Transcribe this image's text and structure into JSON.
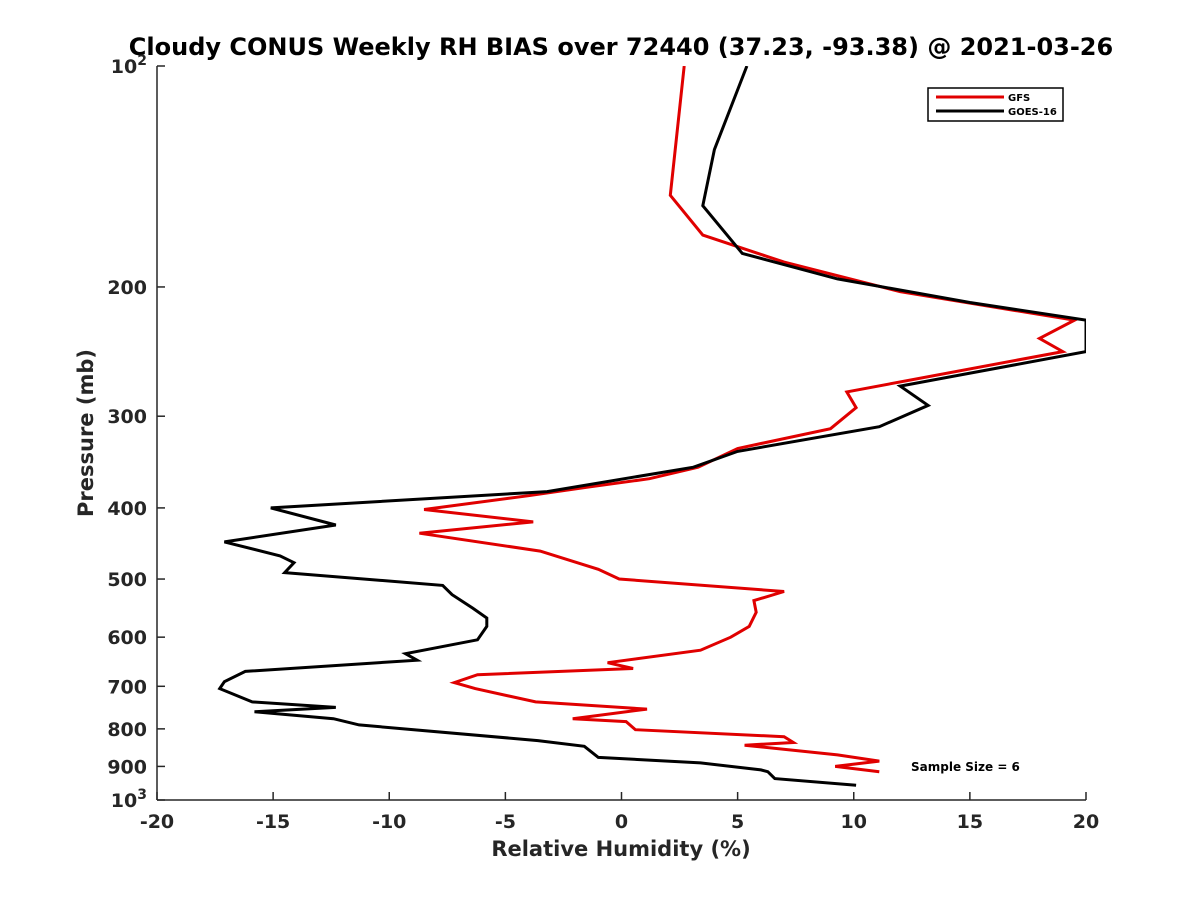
{
  "chart_data": {
    "type": "line",
    "title": "Cloudy CONUS Weekly RH BIAS over 72440 (37.23, -93.38) @ 2021-03-26",
    "xlabel": "Relative Humidity (%)",
    "ylabel": "Pressure (mb)",
    "xlim": [
      -20,
      20
    ],
    "ylim": [
      100,
      1000
    ],
    "y_scale": "log",
    "y_reversed": true,
    "grid": false,
    "legend_position": "top-right",
    "x_ticks": [
      "-20",
      "-15",
      "-10",
      "-5",
      "0",
      "5",
      "10",
      "15",
      "20"
    ],
    "y_ticks": [
      {
        "value": 100,
        "base": "10",
        "exp": "2"
      },
      {
        "value": 200,
        "label": "200"
      },
      {
        "value": 300,
        "label": "300"
      },
      {
        "value": 400,
        "label": "400"
      },
      {
        "value": 500,
        "label": "500"
      },
      {
        "value": 600,
        "label": "600"
      },
      {
        "value": 700,
        "label": "700"
      },
      {
        "value": 800,
        "label": "800"
      },
      {
        "value": 900,
        "label": "900"
      },
      {
        "value": 1000,
        "base": "10",
        "exp": "3"
      }
    ],
    "annotation": "Sample Size = 6",
    "series": [
      {
        "name": "GFS",
        "color": "#e00000",
        "points": [
          [
            2.7,
            100
          ],
          [
            2.1,
            150
          ],
          [
            3.5,
            170
          ],
          [
            7,
            185
          ],
          [
            12,
            203
          ],
          [
            19.5,
            222
          ],
          [
            18,
            235
          ],
          [
            19,
            245
          ],
          [
            9.7,
            278
          ],
          [
            10.1,
            292
          ],
          [
            9,
            312
          ],
          [
            5,
            332
          ],
          [
            3.3,
            352
          ],
          [
            1.2,
            365
          ],
          [
            -1.5,
            375
          ],
          [
            -4,
            385
          ],
          [
            -8.5,
            402
          ],
          [
            -3.8,
            418
          ],
          [
            -8.7,
            433
          ],
          [
            -3.5,
            458
          ],
          [
            -1,
            485
          ],
          [
            -0.1,
            500
          ],
          [
            7,
            520
          ],
          [
            5.7,
            535
          ],
          [
            5.8,
            555
          ],
          [
            5.5,
            580
          ],
          [
            4.7,
            600
          ],
          [
            3.4,
            625
          ],
          [
            -0.6,
            650
          ],
          [
            0.5,
            662
          ],
          [
            -6.2,
            675
          ],
          [
            -7.2,
            692
          ],
          [
            -6.3,
            705
          ],
          [
            -3.7,
            735
          ],
          [
            1.1,
            752
          ],
          [
            -2.1,
            775
          ],
          [
            0.2,
            782
          ],
          [
            0.6,
            802
          ],
          [
            7,
            820
          ],
          [
            7.4,
            835
          ],
          [
            5.3,
            842
          ],
          [
            9.3,
            868
          ],
          [
            11.1,
            885
          ],
          [
            9.2,
            900
          ],
          [
            11.1,
            915
          ]
        ]
      },
      {
        "name": "GOES-16",
        "color": "#000000",
        "points": [
          [
            5.4,
            100
          ],
          [
            4,
            130
          ],
          [
            3.5,
            155
          ],
          [
            5.2,
            180
          ],
          [
            9.3,
            195
          ],
          [
            15,
            210
          ],
          [
            20,
            222
          ],
          [
            20,
            245
          ],
          [
            12,
            273
          ],
          [
            13.2,
            290
          ],
          [
            11.1,
            310
          ],
          [
            5,
            335
          ],
          [
            3.1,
            352
          ],
          [
            -3.2,
            380
          ],
          [
            -15.1,
            400
          ],
          [
            -12.3,
            422
          ],
          [
            -17.1,
            445
          ],
          [
            -14.7,
            465
          ],
          [
            -14.1,
            475
          ],
          [
            -14.5,
            490
          ],
          [
            -7.7,
            510
          ],
          [
            -7.3,
            525
          ],
          [
            -6.4,
            548
          ],
          [
            -5.8,
            565
          ],
          [
            -5.8,
            580
          ],
          [
            -6.2,
            605
          ],
          [
            -9.3,
            632
          ],
          [
            -8.8,
            645
          ],
          [
            -16.2,
            668
          ],
          [
            -17.1,
            690
          ],
          [
            -17.3,
            705
          ],
          [
            -15.9,
            735
          ],
          [
            -12.3,
            748
          ],
          [
            -15.8,
            758
          ],
          [
            -12.4,
            775
          ],
          [
            -11.3,
            790
          ],
          [
            -3.6,
            830
          ],
          [
            -1.6,
            845
          ],
          [
            -1,
            875
          ],
          [
            3.4,
            890
          ],
          [
            6,
            910
          ],
          [
            6.3,
            915
          ],
          [
            6.6,
            935
          ],
          [
            10.1,
            955
          ]
        ]
      }
    ]
  }
}
